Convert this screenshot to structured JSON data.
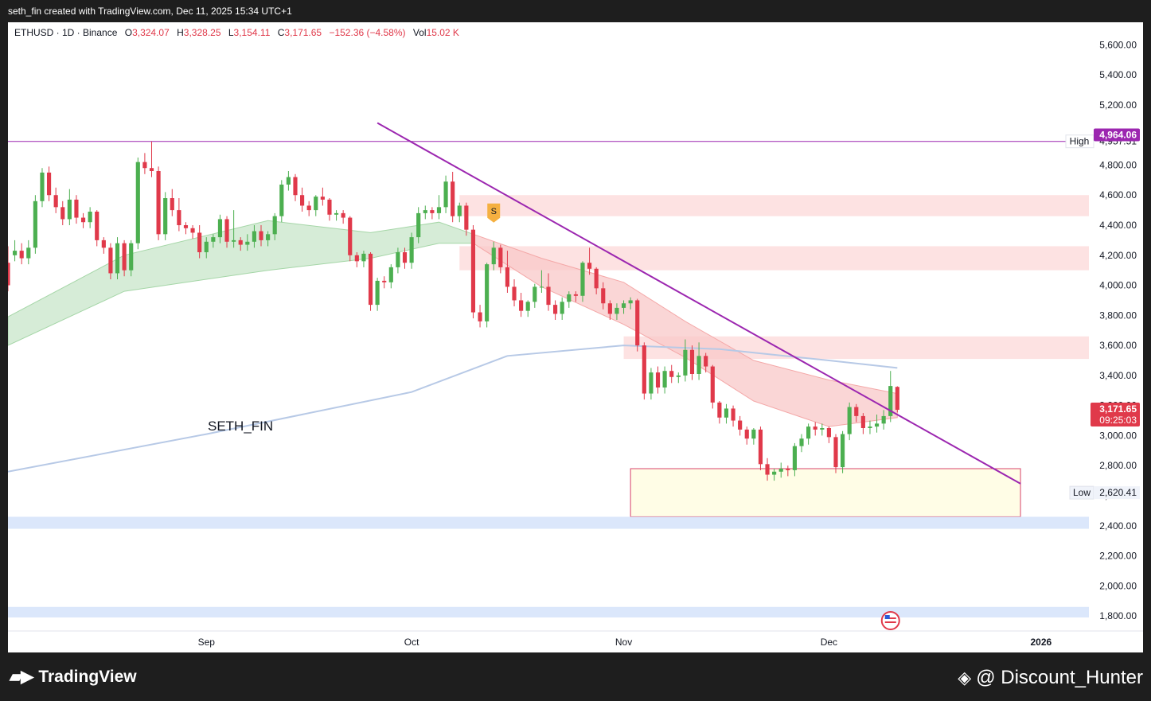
{
  "header": {
    "caption": "seth_fin created with TradingView.com, Dec 11, 2025 15:34 UTC+1"
  },
  "legend": {
    "symbol": "ETHUSD · 1D · Binance",
    "open_label": "O",
    "open": "3,324.07",
    "high_label": "H",
    "high": "3,328.25",
    "low_label": "L",
    "low": "3,154.11",
    "close_label": "C",
    "close": "3,171.65",
    "change": "−152.36 (−4.58%)",
    "vol_label": "Vol",
    "vol": "15.02 K"
  },
  "watermark": "SETH_FIN",
  "footer": {
    "logo_text": "TradingView",
    "credit": "@ Discount_Hunter"
  },
  "colors": {
    "up": "#4caf50",
    "down": "#e0394a",
    "trendline": "#9c27b0",
    "ma": "#b7c9e6",
    "zone_red": "#fde2e2",
    "zone_yellow": "#fffde6",
    "zone_blue": "#dbe7fb"
  },
  "icons": {
    "signal_marker": "s-flag-icon",
    "event_marker": "us-flag-icon"
  },
  "chart_data": {
    "type": "candlestick",
    "y_range": [
      1700,
      5750
    ],
    "y_ticks": [
      1800,
      2000,
      2200,
      2400,
      2600,
      2800,
      3000,
      3200,
      3400,
      3600,
      3800,
      4000,
      4200,
      4400,
      4600,
      4800,
      5200,
      5400,
      5600
    ],
    "y_tick_labels": [
      "1,800.00",
      "2,000.00",
      "2,200.00",
      "2,400.00",
      "2,600.00",
      "2,800.00",
      "3,000.00",
      "3,200.00",
      "3,400.00",
      "3,600.00",
      "3,800.00",
      "4,000.00",
      "4,200.00",
      "4,400.00",
      "4,600.00",
      "4,800.00",
      "5,200.00",
      "5,400.00",
      "5,600.00"
    ],
    "x_axis": {
      "start_date": "2025-08-03",
      "end_date": "2026-01-08",
      "labels": [
        {
          "date": "2025-09-01",
          "text": "Sep"
        },
        {
          "date": "2025-10-01",
          "text": "Oct"
        },
        {
          "date": "2025-11-01",
          "text": "Nov"
        },
        {
          "date": "2025-12-01",
          "text": "Dec"
        },
        {
          "date": "2026-01-01",
          "text": "2026"
        }
      ]
    },
    "candles": [
      {
        "d": "2025-08-03",
        "o": 4150,
        "h": 4260,
        "c": 4000
      },
      {
        "d": "2025-08-04",
        "o": 4200,
        "h": 4300,
        "c": 4230
      },
      {
        "d": "2025-08-05",
        "o": 4230,
        "h": 4280,
        "c": 4180
      },
      {
        "d": "2025-08-06",
        "o": 4180,
        "h": 4300,
        "c": 4250
      },
      {
        "d": "2025-08-07",
        "o": 4250,
        "h": 4600,
        "c": 4560
      },
      {
        "d": "2025-08-08",
        "o": 4560,
        "h": 4780,
        "c": 4750
      },
      {
        "d": "2025-08-09",
        "o": 4750,
        "h": 4790,
        "c": 4600
      },
      {
        "d": "2025-08-10",
        "o": 4600,
        "h": 4650,
        "c": 4520
      },
      {
        "d": "2025-08-11",
        "o": 4520,
        "h": 4560,
        "c": 4440
      },
      {
        "d": "2025-08-12",
        "o": 4440,
        "h": 4640,
        "c": 4570
      },
      {
        "d": "2025-08-13",
        "o": 4570,
        "h": 4600,
        "c": 4450
      },
      {
        "d": "2025-08-14",
        "o": 4450,
        "h": 4480,
        "c": 4420
      },
      {
        "d": "2025-08-15",
        "o": 4420,
        "h": 4520,
        "c": 4490
      },
      {
        "d": "2025-08-16",
        "o": 4490,
        "h": 4500,
        "c": 4300
      },
      {
        "d": "2025-08-17",
        "o": 4300,
        "h": 4320,
        "c": 4250
      },
      {
        "d": "2025-08-18",
        "o": 4250,
        "h": 4280,
        "c": 4080
      },
      {
        "d": "2025-08-19",
        "o": 4080,
        "h": 4320,
        "c": 4280
      },
      {
        "d": "2025-08-20",
        "o": 4280,
        "h": 4300,
        "c": 4100
      },
      {
        "d": "2025-08-21",
        "o": 4100,
        "h": 4300,
        "c": 4280
      },
      {
        "d": "2025-08-22",
        "o": 4280,
        "h": 4850,
        "c": 4820
      },
      {
        "d": "2025-08-23",
        "o": 4820,
        "h": 4880,
        "c": 4780
      },
      {
        "d": "2025-08-24",
        "o": 4780,
        "h": 4957,
        "c": 4760
      },
      {
        "d": "2025-08-25",
        "o": 4760,
        "h": 4790,
        "c": 4340
      },
      {
        "d": "2025-08-26",
        "o": 4340,
        "h": 4620,
        "c": 4580
      },
      {
        "d": "2025-08-27",
        "o": 4580,
        "h": 4640,
        "c": 4500
      },
      {
        "d": "2025-08-28",
        "o": 4500,
        "h": 4580,
        "c": 4400
      },
      {
        "d": "2025-08-29",
        "o": 4400,
        "h": 4420,
        "c": 4380
      },
      {
        "d": "2025-08-30",
        "o": 4380,
        "h": 4400,
        "c": 4350
      },
      {
        "d": "2025-08-31",
        "o": 4350,
        "h": 4400,
        "c": 4220
      },
      {
        "d": "2025-09-01",
        "o": 4220,
        "h": 4320,
        "c": 4290
      },
      {
        "d": "2025-09-02",
        "o": 4290,
        "h": 4340,
        "c": 4320
      },
      {
        "d": "2025-09-03",
        "o": 4320,
        "h": 4470,
        "c": 4440
      },
      {
        "d": "2025-09-04",
        "o": 4440,
        "h": 4460,
        "c": 4290
      },
      {
        "d": "2025-09-05",
        "o": 4290,
        "h": 4500,
        "c": 4300
      },
      {
        "d": "2025-09-06",
        "o": 4300,
        "h": 4320,
        "c": 4270
      },
      {
        "d": "2025-09-07",
        "o": 4270,
        "h": 4340,
        "c": 4290
      },
      {
        "d": "2025-09-08",
        "o": 4290,
        "h": 4400,
        "c": 4360
      },
      {
        "d": "2025-09-09",
        "o": 4360,
        "h": 4400,
        "c": 4300
      },
      {
        "d": "2025-09-10",
        "o": 4300,
        "h": 4360,
        "c": 4340
      },
      {
        "d": "2025-09-11",
        "o": 4340,
        "h": 4480,
        "c": 4460
      },
      {
        "d": "2025-09-12",
        "o": 4460,
        "h": 4700,
        "c": 4670
      },
      {
        "d": "2025-09-13",
        "o": 4670,
        "h": 4760,
        "c": 4720
      },
      {
        "d": "2025-09-14",
        "o": 4720,
        "h": 4740,
        "c": 4600
      },
      {
        "d": "2025-09-15",
        "o": 4600,
        "h": 4650,
        "c": 4530
      },
      {
        "d": "2025-09-16",
        "o": 4530,
        "h": 4560,
        "c": 4500
      },
      {
        "d": "2025-09-17",
        "o": 4500,
        "h": 4600,
        "c": 4590
      },
      {
        "d": "2025-09-18",
        "o": 4590,
        "h": 4650,
        "c": 4570
      },
      {
        "d": "2025-09-19",
        "o": 4570,
        "h": 4580,
        "c": 4470
      },
      {
        "d": "2025-09-20",
        "o": 4470,
        "h": 4500,
        "c": 4480
      },
      {
        "d": "2025-09-21",
        "o": 4480,
        "h": 4500,
        "c": 4450
      },
      {
        "d": "2025-09-22",
        "o": 4450,
        "h": 4460,
        "c": 4200
      },
      {
        "d": "2025-09-23",
        "o": 4200,
        "h": 4220,
        "c": 4160
      },
      {
        "d": "2025-09-24",
        "o": 4160,
        "h": 4230,
        "c": 4210
      },
      {
        "d": "2025-09-25",
        "o": 4210,
        "h": 4220,
        "c": 3870
      },
      {
        "d": "2025-09-26",
        "o": 3870,
        "h": 4050,
        "c": 4030
      },
      {
        "d": "2025-09-27",
        "o": 4030,
        "h": 4060,
        "c": 4020
      },
      {
        "d": "2025-09-28",
        "o": 4020,
        "h": 4140,
        "c": 4120
      },
      {
        "d": "2025-09-29",
        "o": 4120,
        "h": 4250,
        "c": 4220
      },
      {
        "d": "2025-09-30",
        "o": 4220,
        "h": 4250,
        "c": 4150
      },
      {
        "d": "2025-10-01",
        "o": 4150,
        "h": 4350,
        "c": 4320
      },
      {
        "d": "2025-10-02",
        "o": 4320,
        "h": 4520,
        "c": 4480
      },
      {
        "d": "2025-10-03",
        "o": 4480,
        "h": 4530,
        "c": 4500
      },
      {
        "d": "2025-10-04",
        "o": 4500,
        "h": 4520,
        "c": 4480
      },
      {
        "d": "2025-10-05",
        "o": 4480,
        "h": 4600,
        "c": 4520
      },
      {
        "d": "2025-10-06",
        "o": 4520,
        "h": 4730,
        "c": 4690
      },
      {
        "d": "2025-10-07",
        "o": 4690,
        "h": 4755,
        "c": 4460
      },
      {
        "d": "2025-10-08",
        "o": 4460,
        "h": 4550,
        "c": 4530
      },
      {
        "d": "2025-10-09",
        "o": 4530,
        "h": 4550,
        "c": 4370
      },
      {
        "d": "2025-10-10",
        "o": 4370,
        "h": 4400,
        "c": 3820
      },
      {
        "d": "2025-10-11",
        "o": 3820,
        "h": 3870,
        "c": 3760
      },
      {
        "d": "2025-10-12",
        "o": 3760,
        "h": 4150,
        "c": 4140
      },
      {
        "d": "2025-10-13",
        "o": 4140,
        "h": 4290,
        "c": 4250
      },
      {
        "d": "2025-10-14",
        "o": 4250,
        "h": 4270,
        "c": 4120
      },
      {
        "d": "2025-10-15",
        "o": 4120,
        "h": 4230,
        "c": 3990
      },
      {
        "d": "2025-10-16",
        "o": 3990,
        "h": 4040,
        "c": 3900
      },
      {
        "d": "2025-10-17",
        "o": 3900,
        "h": 3950,
        "c": 3830
      },
      {
        "d": "2025-10-18",
        "o": 3830,
        "h": 3900,
        "c": 3890
      },
      {
        "d": "2025-10-19",
        "o": 3890,
        "h": 4010,
        "c": 3990
      },
      {
        "d": "2025-10-20",
        "o": 3990,
        "h": 4100,
        "c": 3990
      },
      {
        "d": "2025-10-21",
        "o": 3990,
        "h": 4080,
        "c": 3870
      },
      {
        "d": "2025-10-22",
        "o": 3870,
        "h": 3900,
        "c": 3810
      },
      {
        "d": "2025-10-23",
        "o": 3810,
        "h": 3920,
        "c": 3890
      },
      {
        "d": "2025-10-24",
        "o": 3890,
        "h": 3960,
        "c": 3940
      },
      {
        "d": "2025-10-25",
        "o": 3940,
        "h": 3960,
        "c": 3930
      },
      {
        "d": "2025-10-26",
        "o": 3930,
        "h": 4160,
        "c": 4150
      },
      {
        "d": "2025-10-27",
        "o": 4150,
        "h": 4250,
        "c": 4110
      },
      {
        "d": "2025-10-28",
        "o": 4110,
        "h": 4120,
        "c": 3980
      },
      {
        "d": "2025-10-29",
        "o": 3980,
        "h": 4020,
        "c": 3880
      },
      {
        "d": "2025-10-30",
        "o": 3880,
        "h": 3900,
        "c": 3810
      },
      {
        "d": "2025-10-31",
        "o": 3810,
        "h": 3880,
        "c": 3850
      },
      {
        "d": "2025-11-01",
        "o": 3850,
        "h": 3900,
        "c": 3880
      },
      {
        "d": "2025-11-02",
        "o": 3880,
        "h": 3920,
        "c": 3900
      },
      {
        "d": "2025-11-03",
        "o": 3900,
        "h": 3910,
        "c": 3600
      },
      {
        "d": "2025-11-04",
        "o": 3600,
        "h": 3620,
        "c": 3280
      },
      {
        "d": "2025-11-05",
        "o": 3280,
        "h": 3450,
        "c": 3420
      },
      {
        "d": "2025-11-06",
        "o": 3420,
        "h": 3460,
        "c": 3320
      },
      {
        "d": "2025-11-07",
        "o": 3320,
        "h": 3460,
        "c": 3430
      },
      {
        "d": "2025-11-08",
        "o": 3430,
        "h": 3470,
        "c": 3390
      },
      {
        "d": "2025-11-09",
        "o": 3390,
        "h": 3420,
        "c": 3400
      },
      {
        "d": "2025-11-10",
        "o": 3400,
        "h": 3640,
        "c": 3570
      },
      {
        "d": "2025-11-11",
        "o": 3570,
        "h": 3600,
        "c": 3410
      },
      {
        "d": "2025-11-12",
        "o": 3410,
        "h": 3620,
        "c": 3530
      },
      {
        "d": "2025-11-13",
        "o": 3530,
        "h": 3550,
        "c": 3460
      },
      {
        "d": "2025-11-14",
        "o": 3460,
        "h": 3470,
        "c": 3220
      },
      {
        "d": "2025-11-15",
        "o": 3220,
        "h": 3230,
        "c": 3120
      },
      {
        "d": "2025-11-16",
        "o": 3120,
        "h": 3210,
        "c": 3180
      },
      {
        "d": "2025-11-17",
        "o": 3180,
        "h": 3200,
        "c": 3100
      },
      {
        "d": "2025-11-18",
        "o": 3100,
        "h": 3130,
        "c": 3040
      },
      {
        "d": "2025-11-19",
        "o": 3040,
        "h": 3060,
        "c": 2980
      },
      {
        "d": "2025-11-20",
        "o": 2980,
        "h": 3050,
        "c": 3040
      },
      {
        "d": "2025-11-21",
        "o": 3040,
        "h": 3060,
        "c": 2810
      },
      {
        "d": "2025-11-22",
        "o": 2810,
        "h": 2850,
        "c": 2740
      },
      {
        "d": "2025-11-23",
        "o": 2740,
        "h": 2780,
        "c": 2760
      },
      {
        "d": "2025-11-24",
        "o": 2760,
        "h": 2820,
        "c": 2780
      },
      {
        "d": "2025-11-25",
        "o": 2780,
        "h": 2800,
        "c": 2770
      },
      {
        "d": "2025-11-26",
        "o": 2770,
        "h": 2950,
        "c": 2930
      },
      {
        "d": "2025-11-27",
        "o": 2930,
        "h": 3010,
        "c": 2980
      },
      {
        "d": "2025-11-28",
        "o": 2980,
        "h": 3080,
        "c": 3060
      },
      {
        "d": "2025-11-29",
        "o": 3060,
        "h": 3090,
        "c": 3040
      },
      {
        "d": "2025-11-30",
        "o": 3040,
        "h": 3080,
        "c": 3050
      },
      {
        "d": "2025-12-01",
        "o": 3050,
        "h": 3060,
        "c": 2990
      },
      {
        "d": "2025-12-02",
        "o": 2990,
        "h": 3010,
        "c": 2790
      },
      {
        "d": "2025-12-03",
        "o": 2790,
        "h": 3030,
        "c": 3010
      },
      {
        "d": "2025-12-04",
        "o": 3010,
        "h": 3220,
        "c": 3190
      },
      {
        "d": "2025-12-05",
        "o": 3190,
        "h": 3210,
        "c": 3130
      },
      {
        "d": "2025-12-06",
        "o": 3130,
        "h": 3150,
        "c": 3050
      },
      {
        "d": "2025-12-07",
        "o": 3050,
        "h": 3100,
        "c": 3060
      },
      {
        "d": "2025-12-08",
        "o": 3060,
        "h": 3140,
        "c": 3080
      },
      {
        "d": "2025-12-09",
        "o": 3080,
        "h": 3170,
        "c": 3130
      },
      {
        "d": "2025-12-10",
        "o": 3130,
        "h": 3430,
        "c": 3330
      },
      {
        "d": "2025-12-11",
        "o": 3324.07,
        "h": 3328.25,
        "c": 3171.65,
        "l": 3154.11
      }
    ],
    "ma_200": [
      {
        "d": "2025-08-03",
        "v": 2760
      },
      {
        "d": "2025-09-01",
        "v": 3010
      },
      {
        "d": "2025-10-01",
        "v": 3290
      },
      {
        "d": "2025-10-15",
        "v": 3530
      },
      {
        "d": "2025-11-01",
        "v": 3600
      },
      {
        "d": "2025-11-15",
        "v": 3575
      },
      {
        "d": "2025-12-01",
        "v": 3500
      },
      {
        "d": "2025-12-11",
        "v": 3450
      }
    ],
    "ribbon_upper": [
      {
        "d": "2025-08-03",
        "v": 3790
      },
      {
        "d": "2025-08-20",
        "v": 4200
      },
      {
        "d": "2025-09-10",
        "v": 4430
      },
      {
        "d": "2025-09-25",
        "v": 4350
      },
      {
        "d": "2025-10-05",
        "v": 4420
      },
      {
        "d": "2025-10-10",
        "v": 4340
      },
      {
        "d": "2025-10-20",
        "v": 4180
      },
      {
        "d": "2025-11-01",
        "v": 4020
      },
      {
        "d": "2025-11-10",
        "v": 3760
      },
      {
        "d": "2025-11-20",
        "v": 3500
      },
      {
        "d": "2025-12-01",
        "v": 3370
      },
      {
        "d": "2025-12-11",
        "v": 3280
      }
    ],
    "ribbon_lower": [
      {
        "d": "2025-08-03",
        "v": 3600
      },
      {
        "d": "2025-08-20",
        "v": 3960
      },
      {
        "d": "2025-09-10",
        "v": 4100
      },
      {
        "d": "2025-09-25",
        "v": 4180
      },
      {
        "d": "2025-10-05",
        "v": 4280
      },
      {
        "d": "2025-10-10",
        "v": 4280
      },
      {
        "d": "2025-10-20",
        "v": 3990
      },
      {
        "d": "2025-11-01",
        "v": 3740
      },
      {
        "d": "2025-11-10",
        "v": 3520
      },
      {
        "d": "2025-11-20",
        "v": 3230
      },
      {
        "d": "2025-12-01",
        "v": 3060
      },
      {
        "d": "2025-12-11",
        "v": 3120
      }
    ],
    "ribbon_bull_until": "2025-10-10",
    "trendline": {
      "from": {
        "d": "2025-09-26",
        "v": 5080
      },
      "to": {
        "d": "2025-12-29",
        "v": 2680
      }
    },
    "high_line": {
      "value": 4957.51,
      "label": "High",
      "text": "4,957.51"
    },
    "low_marker": {
      "value": 2620.41,
      "label": "Low",
      "text": "2,620.41"
    },
    "price_badge_top": {
      "value": 4964.06,
      "text": "4,964.06"
    },
    "last_price": {
      "value": 3171.65,
      "text": "3,171.65",
      "countdown": "09:25:03"
    },
    "zones": [
      {
        "color": "red",
        "from": "2025-10-08",
        "to": "2026-01-08",
        "top": 4600,
        "bottom": 4460
      },
      {
        "color": "red",
        "from": "2025-10-08",
        "to": "2026-01-08",
        "top": 4260,
        "bottom": 4100
      },
      {
        "color": "red",
        "from": "2025-11-01",
        "to": "2026-01-08",
        "top": 3660,
        "bottom": 3510
      },
      {
        "color": "yellow",
        "from": "2025-11-02",
        "to": "2025-12-29",
        "top": 2780,
        "bottom": 2460
      },
      {
        "color": "blue",
        "from": "2025-08-03",
        "to": "2026-01-08",
        "top": 2460,
        "bottom": 2380
      },
      {
        "color": "blue",
        "from": "2025-08-03",
        "to": "2026-01-08",
        "top": 1860,
        "bottom": 1790
      }
    ],
    "signal": {
      "d": "2025-10-13",
      "v": 4470,
      "text": "S"
    },
    "event_date": "2025-12-10"
  }
}
